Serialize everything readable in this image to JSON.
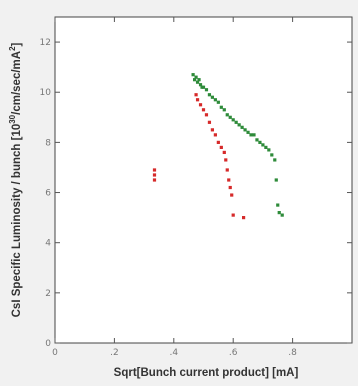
{
  "chart_data": {
    "type": "scatter",
    "title": "",
    "xlabel": "Sqrt[Bunch current product] [mA]",
    "ylabel": {
      "pre": "CsI Specific Luminosity / bunch [10",
      "sup1": "30",
      "mid": "/cm/sec/mA",
      "sup2": "2",
      "post": "]"
    },
    "xlim": [
      0,
      1.0
    ],
    "ylim": [
      0,
      13
    ],
    "x_ticks": [
      0,
      0.2,
      0.4,
      0.6,
      0.8
    ],
    "x_tick_labels": [
      "0",
      ".2",
      ".4",
      ".6",
      ".8"
    ],
    "y_ticks": [
      0,
      2,
      4,
      6,
      8,
      10,
      12
    ],
    "y_tick_labels": [
      "0",
      "2",
      "4",
      "6",
      "8",
      "10",
      "12"
    ],
    "grid": false,
    "series": [
      {
        "color": "#2e8b3a",
        "points": [
          [
            0.465,
            10.7
          ],
          [
            0.47,
            10.5
          ],
          [
            0.475,
            10.6
          ],
          [
            0.48,
            10.4
          ],
          [
            0.485,
            10.5
          ],
          [
            0.49,
            10.3
          ],
          [
            0.495,
            10.2
          ],
          [
            0.5,
            10.2
          ],
          [
            0.51,
            10.1
          ],
          [
            0.52,
            9.9
          ],
          [
            0.53,
            9.8
          ],
          [
            0.54,
            9.7
          ],
          [
            0.55,
            9.6
          ],
          [
            0.56,
            9.4
          ],
          [
            0.57,
            9.3
          ],
          [
            0.58,
            9.1
          ],
          [
            0.59,
            9.0
          ],
          [
            0.6,
            8.9
          ],
          [
            0.61,
            8.8
          ],
          [
            0.62,
            8.7
          ],
          [
            0.63,
            8.6
          ],
          [
            0.64,
            8.5
          ],
          [
            0.65,
            8.4
          ],
          [
            0.66,
            8.3
          ],
          [
            0.67,
            8.3
          ],
          [
            0.68,
            8.1
          ],
          [
            0.69,
            8.0
          ],
          [
            0.7,
            7.9
          ],
          [
            0.71,
            7.8
          ],
          [
            0.72,
            7.7
          ],
          [
            0.73,
            7.5
          ],
          [
            0.74,
            7.3
          ],
          [
            0.745,
            6.5
          ],
          [
            0.75,
            5.5
          ],
          [
            0.755,
            5.2
          ],
          [
            0.765,
            5.1
          ]
        ]
      },
      {
        "color": "#d62a2a",
        "points": [
          [
            0.335,
            6.9
          ],
          [
            0.335,
            6.7
          ],
          [
            0.335,
            6.5
          ],
          [
            0.475,
            9.9
          ],
          [
            0.48,
            9.7
          ],
          [
            0.49,
            9.5
          ],
          [
            0.5,
            9.3
          ],
          [
            0.51,
            9.1
          ],
          [
            0.52,
            8.8
          ],
          [
            0.53,
            8.5
          ],
          [
            0.54,
            8.3
          ],
          [
            0.55,
            8.0
          ],
          [
            0.56,
            7.8
          ],
          [
            0.57,
            7.6
          ],
          [
            0.575,
            7.3
          ],
          [
            0.58,
            6.9
          ],
          [
            0.585,
            6.5
          ],
          [
            0.59,
            6.2
          ],
          [
            0.595,
            5.9
          ],
          [
            0.6,
            5.1
          ],
          [
            0.635,
            5.0
          ]
        ]
      }
    ]
  }
}
